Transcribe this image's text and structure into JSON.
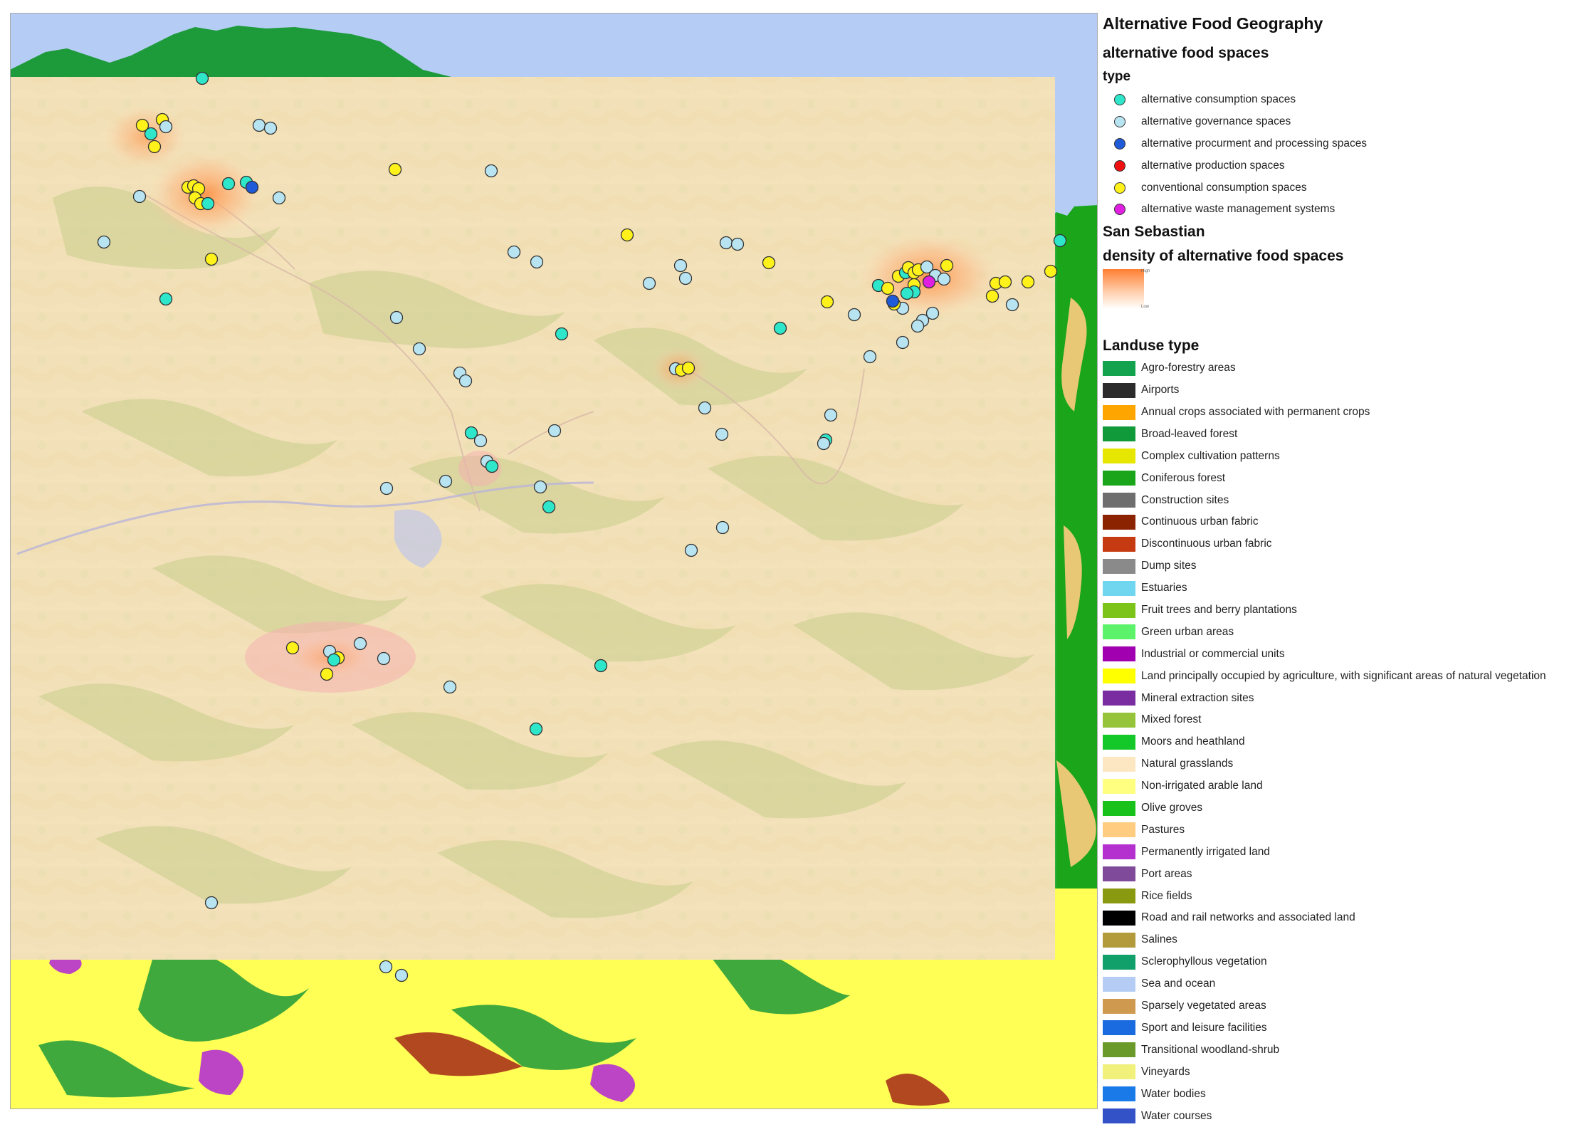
{
  "legend": {
    "title": "Alternative Food Geography",
    "spaces_title": "alternative food spaces",
    "type_title": "type",
    "point_types": [
      {
        "label": "alternative consumption spaces",
        "color": "#2ee6c9"
      },
      {
        "label": "alternative governance spaces",
        "color": "#b8e4f2"
      },
      {
        "label": "alternative procurment and processing spaces",
        "color": "#1f5ad8"
      },
      {
        "label": "alternative production spaces",
        "color": "#f01010"
      },
      {
        "label": "conventional consumption spaces",
        "color": "#fff21a"
      },
      {
        "label": "alternative waste management systems",
        "color": "#e020e0"
      }
    ],
    "city_title": "San Sebastian",
    "density_title": "density of alternative food spaces",
    "density_high": "High",
    "density_low": "Low",
    "landuse_title": "Landuse type",
    "landuse": [
      {
        "label": "Agro-forestry areas",
        "color": "#13a34f"
      },
      {
        "label": "Airports",
        "color": "#2b2b2b"
      },
      {
        "label": "Annual crops associated with permanent crops",
        "color": "#ffa500"
      },
      {
        "label": "Broad-leaved forest",
        "color": "#119a3a"
      },
      {
        "label": "Complex cultivation patterns",
        "color": "#e6e600"
      },
      {
        "label": "Coniferous forest",
        "color": "#1aa51a"
      },
      {
        "label": "Construction sites",
        "color": "#6e6e6e"
      },
      {
        "label": "Continuous urban fabric",
        "color": "#8b2200"
      },
      {
        "label": "Discontinuous urban fabric",
        "color": "#c53a10"
      },
      {
        "label": "Dump sites",
        "color": "#8a8a8a"
      },
      {
        "label": "Estuaries",
        "color": "#70d6f0"
      },
      {
        "label": "Fruit trees and berry plantations",
        "color": "#7cc41a"
      },
      {
        "label": "Green urban areas",
        "color": "#5cf26a"
      },
      {
        "label": "Industrial or commercial units",
        "color": "#a000b0"
      },
      {
        "label": "Land principally occupied by agriculture, with significant areas of natural vegetation",
        "color": "#ffff00"
      },
      {
        "label": "Mineral extraction sites",
        "color": "#7a2da0"
      },
      {
        "label": "Mixed forest",
        "color": "#95c43a"
      },
      {
        "label": "Moors and heathland",
        "color": "#14c82a"
      },
      {
        "label": "Natural grasslands",
        "color": "#fde7c3"
      },
      {
        "label": "Non-irrigated arable land",
        "color": "#ffff80"
      },
      {
        "label": "Olive groves",
        "color": "#19c21a"
      },
      {
        "label": "Pastures",
        "color": "#ffcc80"
      },
      {
        "label": "Permanently irrigated land",
        "color": "#b431d0"
      },
      {
        "label": "Port areas",
        "color": "#7f4a9a"
      },
      {
        "label": "Rice fields",
        "color": "#8a9a10"
      },
      {
        "label": "Road and rail networks and associated land",
        "color": "#000000"
      },
      {
        "label": "Salines",
        "color": "#b39a3a"
      },
      {
        "label": "Sclerophyllous vegetation",
        "color": "#12a06a"
      },
      {
        "label": "Sea and ocean",
        "color": "#b5cdf5"
      },
      {
        "label": "Sparsely vegetated areas",
        "color": "#cf9a50"
      },
      {
        "label": "Sport and leisure facilities",
        "color": "#1a6ae0"
      },
      {
        "label": "Transitional woodland-shrub",
        "color": "#6a9a2a"
      },
      {
        "label": "Vineyards",
        "color": "#f0f07a"
      },
      {
        "label": "Water bodies",
        "color": "#1a7ae8"
      },
      {
        "label": "Water courses",
        "color": "#3452c8"
      }
    ]
  }
}
